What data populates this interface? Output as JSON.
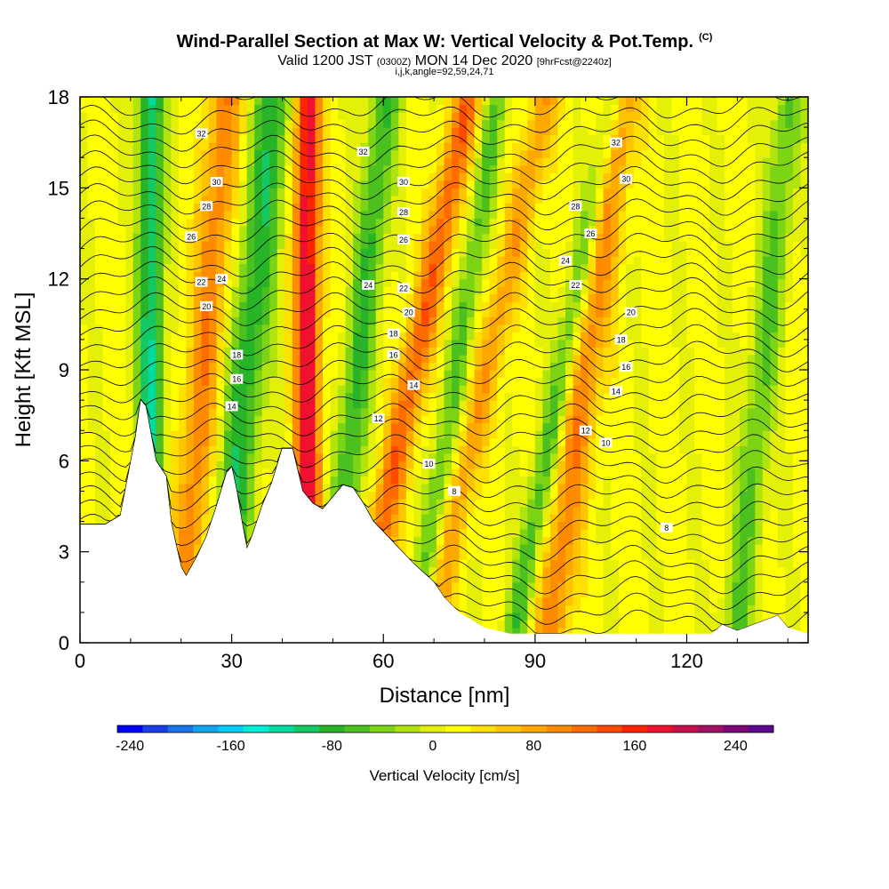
{
  "chart_data": {
    "type": "heatmap",
    "title": "Wind-Parallel Section at Max W: Vertical Velocity & Pot.Temp.",
    "title_tag": "(C)",
    "subtitle": {
      "prefix": "Valid 1200 JST",
      "utc": "(0300Z)",
      "date": "MON 14 Dec 2020",
      "forecast": "[9hrFcst@2240z]"
    },
    "subtitle2": "i,j,k,angle=92,59,24,71",
    "xlabel": "Distance [nm]",
    "ylabel": "Height [Kft MSL]",
    "xlim": [
      0,
      144
    ],
    "ylim": [
      0,
      18
    ],
    "xticks": [
      0,
      30,
      60,
      90,
      120
    ],
    "yticks": [
      0,
      3,
      6,
      9,
      12,
      15,
      18
    ],
    "colorbar": {
      "label": "Vertical Velocity [cm/s]",
      "range": [
        -250,
        270
      ],
      "ticks": [
        -240,
        -160,
        -80,
        0,
        80,
        160,
        240
      ],
      "step": 20,
      "colors": [
        "#0000ff",
        "#1a3ee8",
        "#1874e6",
        "#12a4ec",
        "#00ccf5",
        "#00eed8",
        "#00dca0",
        "#14c864",
        "#28b428",
        "#4cc01e",
        "#7cd414",
        "#b0e40c",
        "#e4f008",
        "#ffff00",
        "#ffe000",
        "#ffc400",
        "#ffa800",
        "#ff8c00",
        "#ff6c00",
        "#ff4a00",
        "#ff2400",
        "#f01030",
        "#c8104c",
        "#a01064",
        "#7c0878",
        "#5c0890"
      ]
    },
    "updraft_bands": [
      {
        "x": 22,
        "amp": 90,
        "tilt": 0.5,
        "width": 3.5
      },
      {
        "x": 45,
        "amp": 180,
        "tilt": 0.0,
        "width": 2.5
      },
      {
        "x": 60,
        "amp": 110,
        "tilt": 1.2,
        "width": 3.0
      },
      {
        "x": 74,
        "amp": 70,
        "tilt": 1.3,
        "width": 3.0
      },
      {
        "x": 96,
        "amp": 90,
        "tilt": 0.8,
        "width": 3.5
      }
    ],
    "downdraft_bands": [
      {
        "x": 14,
        "amp": -130,
        "tilt": 0.0,
        "width": 2.5
      },
      {
        "x": 30,
        "amp": -100,
        "tilt": 0.6,
        "width": 4.0
      },
      {
        "x": 52,
        "amp": -90,
        "tilt": 0.6,
        "width": 3.0
      },
      {
        "x": 70,
        "amp": -70,
        "tilt": 0.9,
        "width": 2.5
      },
      {
        "x": 90,
        "amp": -80,
        "tilt": 1.1,
        "width": 2.5
      },
      {
        "x": 132,
        "amp": -70,
        "tilt": 0.6,
        "width": 3.0
      }
    ],
    "terrain": [
      [
        0,
        3.9
      ],
      [
        5,
        3.9
      ],
      [
        8,
        4.2
      ],
      [
        11,
        6.8
      ],
      [
        12,
        8.0
      ],
      [
        13,
        7.8
      ],
      [
        15,
        6.0
      ],
      [
        17,
        5.5
      ],
      [
        18,
        4.0
      ],
      [
        19,
        3.2
      ],
      [
        20,
        2.5
      ],
      [
        21,
        2.2
      ],
      [
        23,
        2.8
      ],
      [
        25,
        3.5
      ],
      [
        27,
        4.5
      ],
      [
        29,
        5.6
      ],
      [
        30,
        5.8
      ],
      [
        31,
        5.0
      ],
      [
        32,
        4.0
      ],
      [
        33,
        3.1
      ],
      [
        34,
        3.5
      ],
      [
        36,
        4.5
      ],
      [
        38,
        5.3
      ],
      [
        40,
        6.4
      ],
      [
        42,
        6.4
      ],
      [
        43,
        5.7
      ],
      [
        44,
        5.0
      ],
      [
        46,
        4.6
      ],
      [
        48,
        4.4
      ],
      [
        50,
        4.8
      ],
      [
        52,
        5.2
      ],
      [
        54,
        5.1
      ],
      [
        56,
        4.6
      ],
      [
        58,
        4.0
      ],
      [
        62,
        3.3
      ],
      [
        66,
        2.6
      ],
      [
        70,
        2.0
      ],
      [
        72,
        1.5
      ],
      [
        75,
        1.0
      ],
      [
        80,
        0.5
      ],
      [
        85,
        0.3
      ],
      [
        125,
        0.3
      ],
      [
        127,
        0.6
      ],
      [
        130,
        0.4
      ],
      [
        138,
        0.9
      ],
      [
        140,
        0.5
      ],
      [
        144,
        0.3
      ]
    ],
    "contour_labels": [
      {
        "text": "32",
        "x": 24,
        "y": 16.8
      },
      {
        "text": "30",
        "x": 27,
        "y": 15.2
      },
      {
        "text": "28",
        "x": 25,
        "y": 14.4
      },
      {
        "text": "26",
        "x": 22,
        "y": 13.4
      },
      {
        "text": "24",
        "x": 28,
        "y": 12.0
      },
      {
        "text": "22",
        "x": 24,
        "y": 11.9
      },
      {
        "text": "20",
        "x": 25,
        "y": 11.1
      },
      {
        "text": "18",
        "x": 31,
        "y": 9.5
      },
      {
        "text": "16",
        "x": 31,
        "y": 8.7
      },
      {
        "text": "14",
        "x": 30,
        "y": 7.8
      },
      {
        "text": "32",
        "x": 56,
        "y": 16.2
      },
      {
        "text": "30",
        "x": 64,
        "y": 15.2
      },
      {
        "text": "28",
        "x": 64,
        "y": 14.2
      },
      {
        "text": "26",
        "x": 64,
        "y": 13.3
      },
      {
        "text": "24",
        "x": 57,
        "y": 11.8
      },
      {
        "text": "22",
        "x": 64,
        "y": 11.7
      },
      {
        "text": "20",
        "x": 65,
        "y": 10.9
      },
      {
        "text": "18",
        "x": 62,
        "y": 10.2
      },
      {
        "text": "16",
        "x": 62,
        "y": 9.5
      },
      {
        "text": "14",
        "x": 66,
        "y": 8.5
      },
      {
        "text": "12",
        "x": 59,
        "y": 7.4
      },
      {
        "text": "10",
        "x": 69,
        "y": 5.9
      },
      {
        "text": "8",
        "x": 74,
        "y": 5.0
      },
      {
        "text": "32",
        "x": 106,
        "y": 16.5
      },
      {
        "text": "30",
        "x": 108,
        "y": 15.3
      },
      {
        "text": "28",
        "x": 98,
        "y": 14.4
      },
      {
        "text": "26",
        "x": 101,
        "y": 13.5
      },
      {
        "text": "24",
        "x": 96,
        "y": 12.6
      },
      {
        "text": "22",
        "x": 98,
        "y": 11.8
      },
      {
        "text": "20",
        "x": 109,
        "y": 10.9
      },
      {
        "text": "18",
        "x": 107,
        "y": 10.0
      },
      {
        "text": "16",
        "x": 108,
        "y": 9.1
      },
      {
        "text": "14",
        "x": 106,
        "y": 8.3
      },
      {
        "text": "12",
        "x": 100,
        "y": 7.0
      },
      {
        "text": "10",
        "x": 104,
        "y": 6.6
      },
      {
        "text": "8",
        "x": 116,
        "y": 3.8
      }
    ]
  }
}
